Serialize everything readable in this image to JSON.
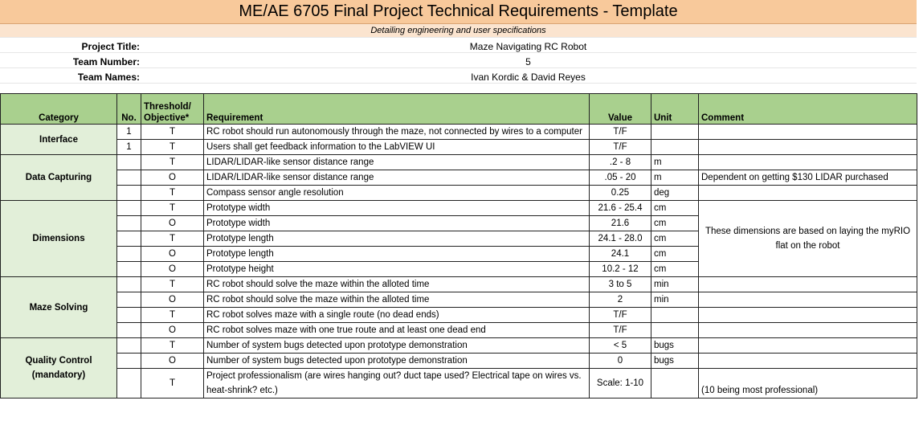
{
  "title": "ME/AE 6705 Final Project Technical Requirements - Template",
  "subtitle": "Detailing engineering and user specifications",
  "project": {
    "title_label": "Project Title:",
    "title_value": "Maze Navigating RC Robot",
    "team_number_label": "Team Number:",
    "team_number_value": "5",
    "team_names_label": "Team Names:",
    "team_names_value": "Ivan Kordic & David Reyes"
  },
  "table": {
    "headers": {
      "category": "Category",
      "no": "No.",
      "threshold_line1": "Threshold/",
      "threshold_line2": "Objective*",
      "requirement": "Requirement",
      "value": "Value",
      "unit": "Unit",
      "comment": "Comment"
    },
    "categories": {
      "interface": "Interface",
      "data_capturing": "Data Capturing",
      "dimensions": "Dimensions",
      "maze_solving": "Maze Solving",
      "quality_control": "Quality Control (mandatory)"
    },
    "rows": [
      {
        "no": "1",
        "to": "T",
        "req": "RC robot should run autonomously through the maze, not connected by wires to a computer",
        "value": "T/F",
        "unit": "",
        "comment": ""
      },
      {
        "no": "1",
        "to": "T",
        "req": "Users shall get feedback information to the LabVIEW UI",
        "value": "T/F",
        "unit": "",
        "comment": ""
      },
      {
        "no": "",
        "to": "T",
        "req": "LIDAR/LIDAR-like sensor distance range",
        "value": ".2 - 8",
        "unit": "m",
        "comment": ""
      },
      {
        "no": "",
        "to": "O",
        "req": "LIDAR/LIDAR-like sensor distance range",
        "value": ".05 - 20",
        "unit": "m",
        "comment": "Dependent on getting $130 LIDAR purchased"
      },
      {
        "no": "",
        "to": "T",
        "req": "Compass sensor angle resolution",
        "value": "0.25",
        "unit": "deg",
        "comment": ""
      },
      {
        "no": "",
        "to": "T",
        "req": "Prototype width",
        "value": "21.6 - 25.4",
        "unit": "cm",
        "comment": ""
      },
      {
        "no": "",
        "to": "O",
        "req": "Prototype width",
        "value": "21.6",
        "unit": "cm",
        "comment": ""
      },
      {
        "no": "",
        "to": "T",
        "req": "Prototype length",
        "value": "24.1 - 28.0",
        "unit": "cm",
        "comment": ""
      },
      {
        "no": "",
        "to": "O",
        "req": "Prototype length",
        "value": "24.1",
        "unit": "cm",
        "comment": ""
      },
      {
        "no": "",
        "to": "O",
        "req": "Prototype height",
        "value": "10.2 - 12",
        "unit": "cm",
        "comment": ""
      },
      {
        "no": "",
        "to": "T",
        "req": "RC robot should solve the maze within the alloted time",
        "value": "3 to 5",
        "unit": "min",
        "comment": ""
      },
      {
        "no": "",
        "to": "O",
        "req": "RC robot should solve the maze within the alloted time",
        "value": "2",
        "unit": "min",
        "comment": ""
      },
      {
        "no": "",
        "to": "T",
        "req": "RC robot solves maze with a single route (no dead ends)",
        "value": "T/F",
        "unit": "",
        "comment": ""
      },
      {
        "no": "",
        "to": "O",
        "req": "RC robot solves maze with one true route and at least one dead end",
        "value": "T/F",
        "unit": "",
        "comment": ""
      },
      {
        "no": "",
        "to": "T",
        "req": "Number of system bugs detected upon prototype demonstration",
        "value": "< 5",
        "unit": "bugs",
        "comment": ""
      },
      {
        "no": "",
        "to": "O",
        "req": "Number of system bugs detected upon prototype demonstration",
        "value": "0",
        "unit": "bugs",
        "comment": ""
      },
      {
        "no": "",
        "to": "T",
        "req": "Project professionalism (are wires hanging out? duct tape used? Electrical tape on wires vs. heat-shrink? etc.)",
        "value": "Scale: 1-10",
        "unit": "",
        "comment": "(10 being most professional)"
      }
    ],
    "dimensions_comment": "These dimensions are based on laying the myRIO flat on the robot"
  }
}
